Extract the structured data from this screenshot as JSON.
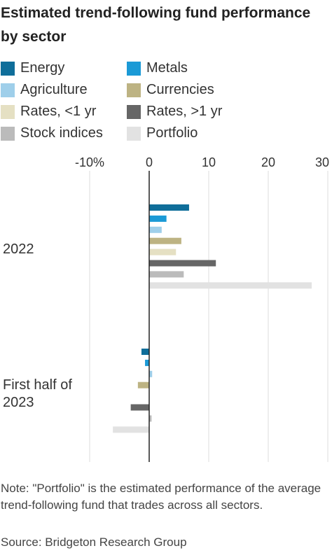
{
  "title": "Estimated trend-following fund performance by sector",
  "note": "Note: \"Portfolio\" is the estimated performance of the average trend-following fund that trades across all sectors.",
  "source": "Source: Bridgeton Research Group",
  "colors": {
    "Energy": "#0f6e9a",
    "Metals": "#1b9ad6",
    "Agriculture": "#9fcfea",
    "Currencies": "#bdb383",
    "Rates, <1 yr": "#e5e0c3",
    "Rates, >1 yr": "#666666",
    "Stock indices": "#bbbbbb",
    "Portfolio": "#e2e2e2",
    "gridline": "#dddddd",
    "zero_line": "#222222"
  },
  "chart_data": {
    "type": "bar",
    "orientation": "horizontal",
    "title": "Estimated trend-following fund performance by sector",
    "xlabel": "",
    "ylabel": "",
    "xlim": [
      -10,
      30
    ],
    "xticks": [
      {
        "value": -10,
        "label": "-10%"
      },
      {
        "value": 0,
        "label": "0"
      },
      {
        "value": 10,
        "label": "10"
      },
      {
        "value": 20,
        "label": "20"
      },
      {
        "value": 30,
        "label": "30"
      }
    ],
    "grid": true,
    "legend_position": "top",
    "categories": [
      "2022",
      "First half of 2023"
    ],
    "series": [
      {
        "name": "Energy",
        "values": [
          6.7,
          -1.3
        ]
      },
      {
        "name": "Metals",
        "values": [
          2.9,
          -0.7
        ]
      },
      {
        "name": "Agriculture",
        "values": [
          2.1,
          0.5
        ]
      },
      {
        "name": "Currencies",
        "values": [
          5.4,
          -1.9
        ]
      },
      {
        "name": "Rates, <1 yr",
        "values": [
          4.5,
          0.0
        ]
      },
      {
        "name": "Rates, >1 yr",
        "values": [
          11.2,
          -3.1
        ]
      },
      {
        "name": "Stock indices",
        "values": [
          5.8,
          0.4
        ]
      },
      {
        "name": "Portfolio",
        "values": [
          27.3,
          -6.1
        ]
      }
    ]
  }
}
